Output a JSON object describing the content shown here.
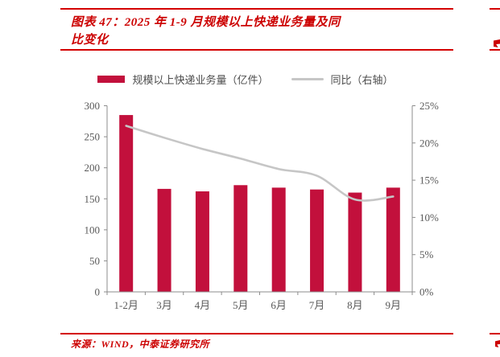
{
  "header": {
    "title_lines": [
      "图表 47：2025 年 1-9 月规模以上快递业务量及同",
      "比变化"
    ],
    "full_title": "图表 47：2025 年 1-9 月规模以上快递业务量及同比变化"
  },
  "footer": {
    "source_text": "来源：WIND，中泰证券研究所"
  },
  "colors": {
    "accent_red": "#C2103C",
    "title_red": "#CC0000",
    "rule_red": "#D40000",
    "line_gray": "#C6C6C6",
    "axis_gray": "#8C8C8C",
    "tick_text": "#595959"
  },
  "chart_data": {
    "type": "bar",
    "subtype": "bar+line combo, dual axis",
    "categories": [
      "1-2月",
      "3月",
      "4月",
      "5月",
      "6月",
      "7月",
      "8月",
      "9月"
    ],
    "series": [
      {
        "name": "规模以上快递业务量（亿件）",
        "type": "bar",
        "axis": "left",
        "values": [
          285,
          166,
          162,
          172,
          168,
          165,
          160,
          168
        ]
      },
      {
        "name": "同比（右轴）",
        "type": "line",
        "axis": "right",
        "values": [
          22.3,
          20.7,
          19.2,
          17.9,
          16.5,
          15.6,
          12.4,
          12.8
        ]
      }
    ],
    "left_axis": {
      "min": 0,
      "max": 300,
      "step": 50,
      "tick_labels": [
        "300",
        "250",
        "200",
        "150",
        "100",
        "50",
        "0"
      ]
    },
    "right_axis": {
      "min": 0,
      "max": 25,
      "step": 5,
      "tick_labels": [
        "25%",
        "20%",
        "15%",
        "10%",
        "5%",
        "0%"
      ]
    },
    "grid": false,
    "legend_position": "top-center",
    "line_smoothed": true
  }
}
